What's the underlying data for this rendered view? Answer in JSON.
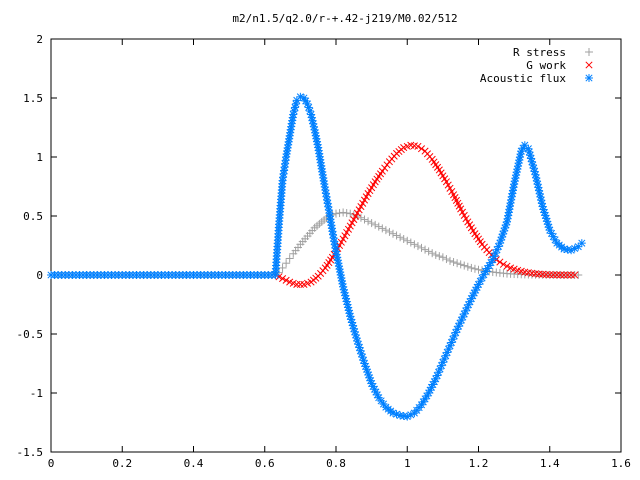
{
  "chart_data": {
    "type": "scatter",
    "title": "m2/n1.5/q2.0/r-+.42-j219/M0.02/512",
    "xlabel": "",
    "ylabel": "",
    "xlim": [
      0,
      1.6
    ],
    "ylim": [
      -1.5,
      2
    ],
    "x_ticks": [
      "0",
      "0.2",
      "0.4",
      "0.6",
      "0.8",
      "1",
      "1.2",
      "1.4",
      "1.6"
    ],
    "y_ticks": [
      "-1.5",
      "-1",
      "-0.5",
      "0",
      "0.5",
      "1",
      "1.5",
      "2"
    ],
    "grid": false,
    "legend_position": "top-right",
    "series": [
      {
        "name": "R stress",
        "marker": "plus",
        "color": "#a0a0a0",
        "points": [
          [
            0.0,
            0.0
          ],
          [
            0.05,
            0.0
          ],
          [
            0.1,
            0.0
          ],
          [
            0.15,
            0.0
          ],
          [
            0.2,
            0.0
          ],
          [
            0.25,
            0.0
          ],
          [
            0.3,
            0.0
          ],
          [
            0.35,
            0.0
          ],
          [
            0.4,
            0.0
          ],
          [
            0.45,
            0.0
          ],
          [
            0.5,
            0.0
          ],
          [
            0.55,
            0.0
          ],
          [
            0.6,
            0.0
          ],
          [
            0.63,
            0.0
          ],
          [
            0.64,
            0.02
          ],
          [
            0.65,
            0.06
          ],
          [
            0.66,
            0.1
          ],
          [
            0.67,
            0.14
          ],
          [
            0.68,
            0.18
          ],
          [
            0.7,
            0.26
          ],
          [
            0.72,
            0.33
          ],
          [
            0.74,
            0.4
          ],
          [
            0.76,
            0.45
          ],
          [
            0.78,
            0.5
          ],
          [
            0.8,
            0.52
          ],
          [
            0.82,
            0.53
          ],
          [
            0.84,
            0.52
          ],
          [
            0.86,
            0.5
          ],
          [
            0.88,
            0.47
          ],
          [
            0.9,
            0.44
          ],
          [
            0.92,
            0.41
          ],
          [
            0.94,
            0.38
          ],
          [
            0.96,
            0.35
          ],
          [
            0.98,
            0.32
          ],
          [
            1.0,
            0.29
          ],
          [
            1.02,
            0.26
          ],
          [
            1.04,
            0.23
          ],
          [
            1.06,
            0.2
          ],
          [
            1.08,
            0.17
          ],
          [
            1.1,
            0.15
          ],
          [
            1.12,
            0.12
          ],
          [
            1.14,
            0.1
          ],
          [
            1.16,
            0.08
          ],
          [
            1.18,
            0.06
          ],
          [
            1.2,
            0.045
          ],
          [
            1.22,
            0.035
          ],
          [
            1.24,
            0.025
          ],
          [
            1.26,
            0.018
          ],
          [
            1.28,
            0.012
          ],
          [
            1.3,
            0.008
          ],
          [
            1.33,
            0.005
          ],
          [
            1.36,
            0.003
          ],
          [
            1.4,
            0.001
          ],
          [
            1.44,
            0.0
          ],
          [
            1.48,
            0.0
          ]
        ]
      },
      {
        "name": "G work",
        "marker": "cross",
        "color": "#ff0000",
        "points": [
          [
            0.63,
            0.0
          ],
          [
            0.65,
            -0.03
          ],
          [
            0.67,
            -0.06
          ],
          [
            0.69,
            -0.08
          ],
          [
            0.71,
            -0.08
          ],
          [
            0.73,
            -0.06
          ],
          [
            0.75,
            -0.01
          ],
          [
            0.77,
            0.06
          ],
          [
            0.79,
            0.15
          ],
          [
            0.81,
            0.25
          ],
          [
            0.83,
            0.36
          ],
          [
            0.85,
            0.47
          ],
          [
            0.87,
            0.58
          ],
          [
            0.89,
            0.69
          ],
          [
            0.91,
            0.79
          ],
          [
            0.93,
            0.88
          ],
          [
            0.95,
            0.96
          ],
          [
            0.97,
            1.03
          ],
          [
            0.99,
            1.08
          ],
          [
            1.01,
            1.1
          ],
          [
            1.03,
            1.09
          ],
          [
            1.05,
            1.05
          ],
          [
            1.07,
            0.98
          ],
          [
            1.09,
            0.89
          ],
          [
            1.11,
            0.79
          ],
          [
            1.13,
            0.68
          ],
          [
            1.15,
            0.56
          ],
          [
            1.17,
            0.45
          ],
          [
            1.19,
            0.35
          ],
          [
            1.21,
            0.26
          ],
          [
            1.23,
            0.19
          ],
          [
            1.25,
            0.13
          ],
          [
            1.27,
            0.09
          ],
          [
            1.29,
            0.06
          ],
          [
            1.31,
            0.04
          ],
          [
            1.33,
            0.025
          ],
          [
            1.35,
            0.015
          ],
          [
            1.37,
            0.008
          ],
          [
            1.39,
            0.004
          ],
          [
            1.41,
            0.002
          ],
          [
            1.44,
            0.0
          ],
          [
            1.47,
            0.0
          ]
        ]
      },
      {
        "name": "Acoustic flux",
        "marker": "star",
        "color": "#0080ff",
        "points": [
          [
            0.0,
            0.0
          ],
          [
            0.05,
            0.0
          ],
          [
            0.1,
            0.0
          ],
          [
            0.15,
            0.0
          ],
          [
            0.2,
            0.0
          ],
          [
            0.25,
            0.0
          ],
          [
            0.3,
            0.0
          ],
          [
            0.35,
            0.0
          ],
          [
            0.4,
            0.0
          ],
          [
            0.45,
            0.0
          ],
          [
            0.5,
            0.0
          ],
          [
            0.55,
            0.0
          ],
          [
            0.6,
            0.0
          ],
          [
            0.63,
            0.0
          ],
          [
            0.64,
            0.43
          ],
          [
            0.65,
            0.8
          ],
          [
            0.66,
            1.0
          ],
          [
            0.67,
            1.18
          ],
          [
            0.68,
            1.36
          ],
          [
            0.69,
            1.48
          ],
          [
            0.7,
            1.51
          ],
          [
            0.71,
            1.5
          ],
          [
            0.72,
            1.45
          ],
          [
            0.73,
            1.36
          ],
          [
            0.74,
            1.23
          ],
          [
            0.75,
            1.08
          ],
          [
            0.76,
            0.9
          ],
          [
            0.77,
            0.72
          ],
          [
            0.78,
            0.55
          ],
          [
            0.79,
            0.37
          ],
          [
            0.8,
            0.2
          ],
          [
            0.82,
            -0.1
          ],
          [
            0.84,
            -0.35
          ],
          [
            0.86,
            -0.56
          ],
          [
            0.88,
            -0.75
          ],
          [
            0.9,
            -0.92
          ],
          [
            0.92,
            -1.04
          ],
          [
            0.94,
            -1.12
          ],
          [
            0.96,
            -1.17
          ],
          [
            0.98,
            -1.19
          ],
          [
            1.0,
            -1.2
          ],
          [
            1.02,
            -1.17
          ],
          [
            1.04,
            -1.1
          ],
          [
            1.06,
            -1.0
          ],
          [
            1.08,
            -0.88
          ],
          [
            1.1,
            -0.74
          ],
          [
            1.12,
            -0.6
          ],
          [
            1.14,
            -0.46
          ],
          [
            1.16,
            -0.33
          ],
          [
            1.18,
            -0.2
          ],
          [
            1.2,
            -0.08
          ],
          [
            1.22,
            0.03
          ],
          [
            1.24,
            0.13
          ],
          [
            1.26,
            0.27
          ],
          [
            1.28,
            0.45
          ],
          [
            1.3,
            0.77
          ],
          [
            1.32,
            1.05
          ],
          [
            1.33,
            1.1
          ],
          [
            1.34,
            1.07
          ],
          [
            1.36,
            0.85
          ],
          [
            1.38,
            0.58
          ],
          [
            1.4,
            0.38
          ],
          [
            1.42,
            0.27
          ],
          [
            1.44,
            0.22
          ],
          [
            1.46,
            0.21
          ],
          [
            1.48,
            0.24
          ],
          [
            1.49,
            0.27
          ]
        ]
      }
    ]
  }
}
